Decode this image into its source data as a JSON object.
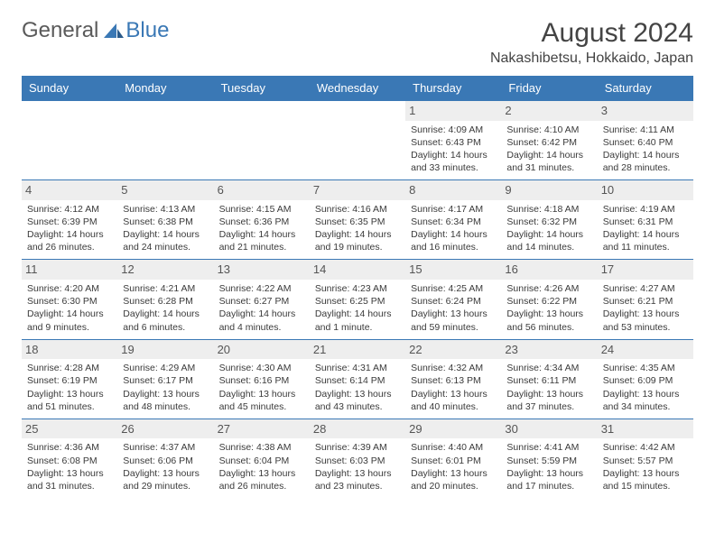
{
  "logo": {
    "text_gray": "General",
    "text_blue": "Blue"
  },
  "header": {
    "month_title": "August 2024",
    "location": "Nakashibetsu, Hokkaido, Japan"
  },
  "colors": {
    "header_bg": "#3a78b5",
    "header_text": "#ffffff",
    "daynum_bg": "#eeeeee",
    "border": "#3a78b5",
    "text": "#3a3a3a"
  },
  "day_names": [
    "Sunday",
    "Monday",
    "Tuesday",
    "Wednesday",
    "Thursday",
    "Friday",
    "Saturday"
  ],
  "weeks": [
    [
      null,
      null,
      null,
      null,
      {
        "n": "1",
        "sr": "Sunrise: 4:09 AM",
        "ss": "Sunset: 6:43 PM",
        "dl": "Daylight: 14 hours and 33 minutes."
      },
      {
        "n": "2",
        "sr": "Sunrise: 4:10 AM",
        "ss": "Sunset: 6:42 PM",
        "dl": "Daylight: 14 hours and 31 minutes."
      },
      {
        "n": "3",
        "sr": "Sunrise: 4:11 AM",
        "ss": "Sunset: 6:40 PM",
        "dl": "Daylight: 14 hours and 28 minutes."
      }
    ],
    [
      {
        "n": "4",
        "sr": "Sunrise: 4:12 AM",
        "ss": "Sunset: 6:39 PM",
        "dl": "Daylight: 14 hours and 26 minutes."
      },
      {
        "n": "5",
        "sr": "Sunrise: 4:13 AM",
        "ss": "Sunset: 6:38 PM",
        "dl": "Daylight: 14 hours and 24 minutes."
      },
      {
        "n": "6",
        "sr": "Sunrise: 4:15 AM",
        "ss": "Sunset: 6:36 PM",
        "dl": "Daylight: 14 hours and 21 minutes."
      },
      {
        "n": "7",
        "sr": "Sunrise: 4:16 AM",
        "ss": "Sunset: 6:35 PM",
        "dl": "Daylight: 14 hours and 19 minutes."
      },
      {
        "n": "8",
        "sr": "Sunrise: 4:17 AM",
        "ss": "Sunset: 6:34 PM",
        "dl": "Daylight: 14 hours and 16 minutes."
      },
      {
        "n": "9",
        "sr": "Sunrise: 4:18 AM",
        "ss": "Sunset: 6:32 PM",
        "dl": "Daylight: 14 hours and 14 minutes."
      },
      {
        "n": "10",
        "sr": "Sunrise: 4:19 AM",
        "ss": "Sunset: 6:31 PM",
        "dl": "Daylight: 14 hours and 11 minutes."
      }
    ],
    [
      {
        "n": "11",
        "sr": "Sunrise: 4:20 AM",
        "ss": "Sunset: 6:30 PM",
        "dl": "Daylight: 14 hours and 9 minutes."
      },
      {
        "n": "12",
        "sr": "Sunrise: 4:21 AM",
        "ss": "Sunset: 6:28 PM",
        "dl": "Daylight: 14 hours and 6 minutes."
      },
      {
        "n": "13",
        "sr": "Sunrise: 4:22 AM",
        "ss": "Sunset: 6:27 PM",
        "dl": "Daylight: 14 hours and 4 minutes."
      },
      {
        "n": "14",
        "sr": "Sunrise: 4:23 AM",
        "ss": "Sunset: 6:25 PM",
        "dl": "Daylight: 14 hours and 1 minute."
      },
      {
        "n": "15",
        "sr": "Sunrise: 4:25 AM",
        "ss": "Sunset: 6:24 PM",
        "dl": "Daylight: 13 hours and 59 minutes."
      },
      {
        "n": "16",
        "sr": "Sunrise: 4:26 AM",
        "ss": "Sunset: 6:22 PM",
        "dl": "Daylight: 13 hours and 56 minutes."
      },
      {
        "n": "17",
        "sr": "Sunrise: 4:27 AM",
        "ss": "Sunset: 6:21 PM",
        "dl": "Daylight: 13 hours and 53 minutes."
      }
    ],
    [
      {
        "n": "18",
        "sr": "Sunrise: 4:28 AM",
        "ss": "Sunset: 6:19 PM",
        "dl": "Daylight: 13 hours and 51 minutes."
      },
      {
        "n": "19",
        "sr": "Sunrise: 4:29 AM",
        "ss": "Sunset: 6:17 PM",
        "dl": "Daylight: 13 hours and 48 minutes."
      },
      {
        "n": "20",
        "sr": "Sunrise: 4:30 AM",
        "ss": "Sunset: 6:16 PM",
        "dl": "Daylight: 13 hours and 45 minutes."
      },
      {
        "n": "21",
        "sr": "Sunrise: 4:31 AM",
        "ss": "Sunset: 6:14 PM",
        "dl": "Daylight: 13 hours and 43 minutes."
      },
      {
        "n": "22",
        "sr": "Sunrise: 4:32 AM",
        "ss": "Sunset: 6:13 PM",
        "dl": "Daylight: 13 hours and 40 minutes."
      },
      {
        "n": "23",
        "sr": "Sunrise: 4:34 AM",
        "ss": "Sunset: 6:11 PM",
        "dl": "Daylight: 13 hours and 37 minutes."
      },
      {
        "n": "24",
        "sr": "Sunrise: 4:35 AM",
        "ss": "Sunset: 6:09 PM",
        "dl": "Daylight: 13 hours and 34 minutes."
      }
    ],
    [
      {
        "n": "25",
        "sr": "Sunrise: 4:36 AM",
        "ss": "Sunset: 6:08 PM",
        "dl": "Daylight: 13 hours and 31 minutes."
      },
      {
        "n": "26",
        "sr": "Sunrise: 4:37 AM",
        "ss": "Sunset: 6:06 PM",
        "dl": "Daylight: 13 hours and 29 minutes."
      },
      {
        "n": "27",
        "sr": "Sunrise: 4:38 AM",
        "ss": "Sunset: 6:04 PM",
        "dl": "Daylight: 13 hours and 26 minutes."
      },
      {
        "n": "28",
        "sr": "Sunrise: 4:39 AM",
        "ss": "Sunset: 6:03 PM",
        "dl": "Daylight: 13 hours and 23 minutes."
      },
      {
        "n": "29",
        "sr": "Sunrise: 4:40 AM",
        "ss": "Sunset: 6:01 PM",
        "dl": "Daylight: 13 hours and 20 minutes."
      },
      {
        "n": "30",
        "sr": "Sunrise: 4:41 AM",
        "ss": "Sunset: 5:59 PM",
        "dl": "Daylight: 13 hours and 17 minutes."
      },
      {
        "n": "31",
        "sr": "Sunrise: 4:42 AM",
        "ss": "Sunset: 5:57 PM",
        "dl": "Daylight: 13 hours and 15 minutes."
      }
    ]
  ]
}
